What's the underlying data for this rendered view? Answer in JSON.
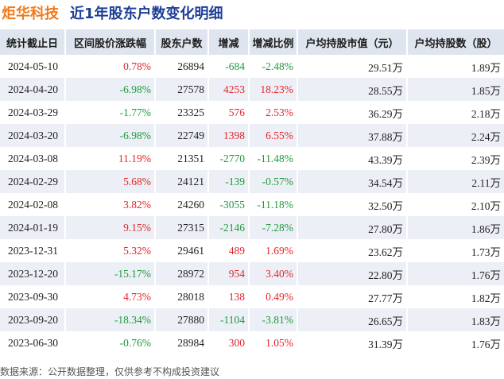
{
  "header": {
    "company": "炬华科技",
    "title": "近1年股东户数变化明细"
  },
  "columns": [
    "统计截止日",
    "区间股价涨跌幅",
    "股东户数",
    "增减",
    "增减比例",
    "户均持股市值（元）",
    "户均持股数（股）"
  ],
  "rows": [
    {
      "date": "2024-05-10",
      "price_change": "0.78%",
      "holders": "26894",
      "change": "-684",
      "ratio": "-2.48%",
      "avg_value": "29.51万",
      "avg_shares": "1.89万"
    },
    {
      "date": "2024-04-20",
      "price_change": "-6.98%",
      "holders": "27578",
      "change": "4253",
      "ratio": "18.23%",
      "avg_value": "28.55万",
      "avg_shares": "1.85万"
    },
    {
      "date": "2024-03-29",
      "price_change": "-1.77%",
      "holders": "23325",
      "change": "576",
      "ratio": "2.53%",
      "avg_value": "36.29万",
      "avg_shares": "2.18万"
    },
    {
      "date": "2024-03-20",
      "price_change": "-6.98%",
      "holders": "22749",
      "change": "1398",
      "ratio": "6.55%",
      "avg_value": "37.88万",
      "avg_shares": "2.24万"
    },
    {
      "date": "2024-03-08",
      "price_change": "11.19%",
      "holders": "21351",
      "change": "-2770",
      "ratio": "-11.48%",
      "avg_value": "43.39万",
      "avg_shares": "2.39万"
    },
    {
      "date": "2024-02-29",
      "price_change": "5.68%",
      "holders": "24121",
      "change": "-139",
      "ratio": "-0.57%",
      "avg_value": "34.54万",
      "avg_shares": "2.11万"
    },
    {
      "date": "2024-02-08",
      "price_change": "3.82%",
      "holders": "24260",
      "change": "-3055",
      "ratio": "-11.18%",
      "avg_value": "32.50万",
      "avg_shares": "2.10万"
    },
    {
      "date": "2024-01-19",
      "price_change": "9.15%",
      "holders": "27315",
      "change": "-2146",
      "ratio": "-7.28%",
      "avg_value": "27.80万",
      "avg_shares": "1.86万"
    },
    {
      "date": "2023-12-31",
      "price_change": "5.32%",
      "holders": "29461",
      "change": "489",
      "ratio": "1.69%",
      "avg_value": "23.62万",
      "avg_shares": "1.73万"
    },
    {
      "date": "2023-12-20",
      "price_change": "-15.17%",
      "holders": "28972",
      "change": "954",
      "ratio": "3.40%",
      "avg_value": "22.80万",
      "avg_shares": "1.76万"
    },
    {
      "date": "2023-09-30",
      "price_change": "4.73%",
      "holders": "28018",
      "change": "138",
      "ratio": "0.49%",
      "avg_value": "27.77万",
      "avg_shares": "1.82万"
    },
    {
      "date": "2023-09-20",
      "price_change": "-18.34%",
      "holders": "27880",
      "change": "-1104",
      "ratio": "-3.81%",
      "avg_value": "26.65万",
      "avg_shares": "1.83万"
    },
    {
      "date": "2023-06-30",
      "price_change": "-0.76%",
      "holders": "28984",
      "change": "300",
      "ratio": "1.05%",
      "avg_value": "31.39万",
      "avg_shares": "1.76万"
    }
  ],
  "footer": "数据来源：公开数据整理，仅供参考不构成投资建议",
  "colors": {
    "positive": "#e5242b",
    "negative": "#1e9a3d",
    "header_bg": "#dfe5ee",
    "stripe_bg": "#ecf0f6",
    "company": "#f07a1a",
    "title": "#1e3f96"
  }
}
